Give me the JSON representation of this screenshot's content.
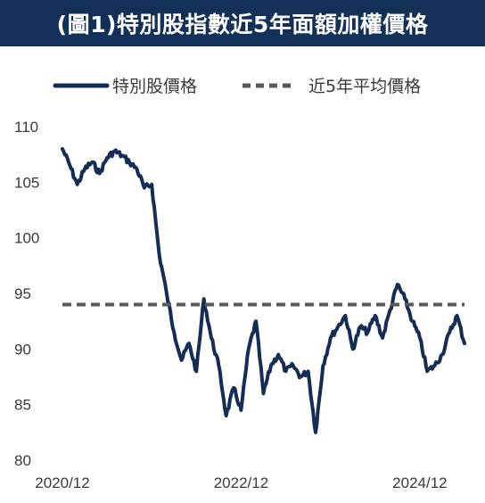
{
  "colors": {
    "title_background": "#133059",
    "title_text": "#ffffff",
    "price_line": "#152c55",
    "average_line": "#595959",
    "tick_text": "#3a3a3a"
  },
  "chart_data": {
    "type": "line",
    "title": "(圖1)特別股指數近5年面額加權價格",
    "xlabel": "",
    "ylabel": "",
    "ylim": [
      80,
      110
    ],
    "yticks": [
      80,
      85,
      90,
      95,
      100,
      105,
      110
    ],
    "x_tick_labels": [
      "2020/12",
      "2022/12",
      "2024/12"
    ],
    "x_range": [
      "2020/12",
      "2025/06"
    ],
    "grid": false,
    "legend_position": "top",
    "series": [
      {
        "name": "特別股價格",
        "style": "solid",
        "x": [
          "2020/12",
          "2021/01",
          "2021/02",
          "2021/03",
          "2021/04",
          "2021/05",
          "2021/06",
          "2021/07",
          "2021/08",
          "2021/09",
          "2021/10",
          "2021/11",
          "2021/12",
          "2022/01",
          "2022/02",
          "2022/03",
          "2022/04",
          "2022/05",
          "2022/06",
          "2022/07",
          "2022/08",
          "2022/09",
          "2022/10",
          "2022/11",
          "2022/12",
          "2023/01",
          "2023/02",
          "2023/03",
          "2023/04",
          "2023/05",
          "2023/06",
          "2023/07",
          "2023/08",
          "2023/09",
          "2023/10",
          "2023/11",
          "2023/12",
          "2024/01",
          "2024/02",
          "2024/03",
          "2024/04",
          "2024/05",
          "2024/06",
          "2024/07",
          "2024/08",
          "2024/09",
          "2024/10",
          "2024/11",
          "2024/12",
          "2025/01",
          "2025/02",
          "2025/03",
          "2025/04",
          "2025/05",
          "2025/06"
        ],
        "values": [
          108.0,
          106.5,
          104.8,
          106.2,
          106.8,
          105.8,
          107.2,
          107.8,
          107.4,
          106.8,
          106.2,
          104.5,
          104.8,
          98.5,
          95.0,
          91.5,
          89.0,
          90.5,
          88.0,
          94.5,
          91.0,
          88.5,
          84.0,
          86.5,
          84.5,
          90.0,
          92.5,
          86.0,
          88.5,
          89.5,
          88.0,
          88.5,
          87.5,
          88.0,
          82.5,
          88.5,
          91.0,
          92.0,
          93.0,
          90.0,
          92.0,
          91.5,
          93.0,
          91.0,
          93.5,
          95.8,
          94.5,
          92.5,
          91.0,
          88.0,
          88.5,
          89.5,
          91.5,
          93.0,
          90.5
        ]
      },
      {
        "name": "近5年平均價格",
        "style": "dashed",
        "x": [
          "2020/12",
          "2025/06"
        ],
        "values": [
          94.0,
          94.0
        ]
      }
    ]
  }
}
